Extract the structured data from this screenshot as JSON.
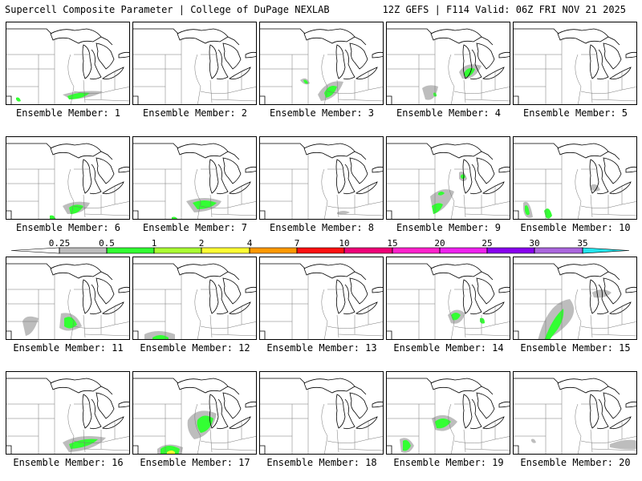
{
  "header": {
    "left": "Supercell Composite Parameter | College of DuPage NEXLAB",
    "right": "12Z GEFS | F114 Valid: 06Z FRI NOV 21 2025"
  },
  "colorbar": {
    "ticks": [
      "0.25",
      "0.5",
      "1",
      "2",
      "4",
      "7",
      "10",
      "15",
      "20",
      "25",
      "30",
      "35"
    ],
    "colors": [
      "#bdbdbd",
      "#33ff33",
      "#aaff33",
      "#ffff33",
      "#ff9900",
      "#ff1111",
      "#ee0077",
      "#ff22cc",
      "#ee22ee",
      "#8800ee",
      "#aa66dd",
      "#22e5ee"
    ]
  },
  "members": [
    {
      "label": "Ensemble Member: 1"
    },
    {
      "label": "Ensemble Member: 2"
    },
    {
      "label": "Ensemble Member: 3"
    },
    {
      "label": "Ensemble Member: 4"
    },
    {
      "label": "Ensemble Member: 5"
    },
    {
      "label": "Ensemble Member: 6"
    },
    {
      "label": "Ensemble Member: 7"
    },
    {
      "label": "Ensemble Member: 8"
    },
    {
      "label": "Ensemble Member: 9"
    },
    {
      "label": "Ensemble Member: 10"
    },
    {
      "label": "Ensemble Member: 11"
    },
    {
      "label": "Ensemble Member: 12"
    },
    {
      "label": "Ensemble Member: 13"
    },
    {
      "label": "Ensemble Member: 14"
    },
    {
      "label": "Ensemble Member: 15"
    },
    {
      "label": "Ensemble Member: 16"
    },
    {
      "label": "Ensemble Member: 17"
    },
    {
      "label": "Ensemble Member: 18"
    },
    {
      "label": "Ensemble Member: 19"
    },
    {
      "label": "Ensemble Member: 20"
    }
  ]
}
